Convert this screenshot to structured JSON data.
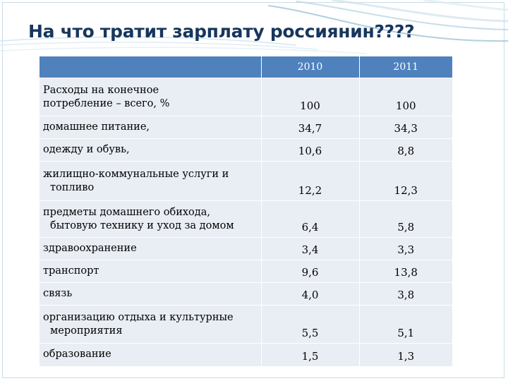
{
  "title": "На что тратит зарплату россиянин????",
  "table": {
    "header": [
      "",
      "2010",
      "2011"
    ],
    "rows": [
      {
        "label_line1": "Расходы на конечное",
        "label_line2": "потребление – всего, %",
        "v2010": "100",
        "v2011": "100"
      },
      {
        "label_line1": "домашнее питание,",
        "label_line2": "",
        "v2010": "34,7",
        "v2011": "34,3"
      },
      {
        "label_line1": "одежду и обувь,",
        "label_line2": "",
        "v2010": "10,6",
        "v2011": "8,8"
      },
      {
        "label_line1": "жилищно-коммунальные услуги и",
        "label_line2": "топливо",
        "v2010": "12,2",
        "v2011": "12,3"
      },
      {
        "label_line1": "предметы домашнего обихода,",
        "label_line2": "бытовую технику и уход за домом",
        "v2010": "6,4",
        "v2011": "5,8"
      },
      {
        "label_line1": "здравоохранение",
        "label_line2": "",
        "v2010": "3,4",
        "v2011": "3,3"
      },
      {
        "label_line1": "транспорт",
        "label_line2": "",
        "v2010": "9,6",
        "v2011": "13,8"
      },
      {
        "label_line1": "связь",
        "label_line2": "",
        "v2010": "4,0",
        "v2011": "3,8"
      },
      {
        "label_line1": "организацию отдыха и культурные",
        "label_line2": "мероприятия",
        "v2010": "5,5",
        "v2011": "5,1"
      },
      {
        "label_line1": "образование",
        "label_line2": "",
        "v2010": "1,5",
        "v2011": "1,3"
      }
    ]
  },
  "colors": {
    "header_bg": "#4f81bd",
    "row_bg": "#e9edf4",
    "title": "#17365d",
    "decoration": "#9dc3d8"
  }
}
